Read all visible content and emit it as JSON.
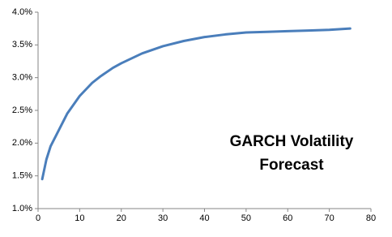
{
  "chart_data": {
    "type": "line",
    "annotation": "GARCH Volatility Forecast",
    "x": [
      1,
      2,
      3,
      5,
      7,
      10,
      13,
      15,
      18,
      20,
      25,
      30,
      35,
      40,
      45,
      50,
      55,
      60,
      65,
      70,
      75
    ],
    "series": [
      {
        "color": "#4a7ebb",
        "values": [
          1.45,
          1.75,
          1.95,
          2.2,
          2.45,
          2.72,
          2.92,
          3.02,
          3.15,
          3.22,
          3.37,
          3.48,
          3.56,
          3.62,
          3.66,
          3.69,
          3.7,
          3.71,
          3.72,
          3.73,
          3.75
        ]
      }
    ],
    "xlim": [
      0,
      80
    ],
    "xticks": [
      0,
      10,
      20,
      30,
      40,
      50,
      60,
      70,
      80
    ],
    "ylim": [
      1,
      4
    ],
    "yticks": [
      {
        "value": 1,
        "label": "1.0%"
      },
      {
        "value": 1.5,
        "label": "1.5%"
      },
      {
        "value": 2,
        "label": "2.0%"
      },
      {
        "value": 2.5,
        "label": "2.5%"
      },
      {
        "value": 3,
        "label": "3.0%"
      },
      {
        "value": 3.5,
        "label": "3.5%"
      },
      {
        "value": 4,
        "label": "4.0%"
      }
    ],
    "grid": false
  }
}
